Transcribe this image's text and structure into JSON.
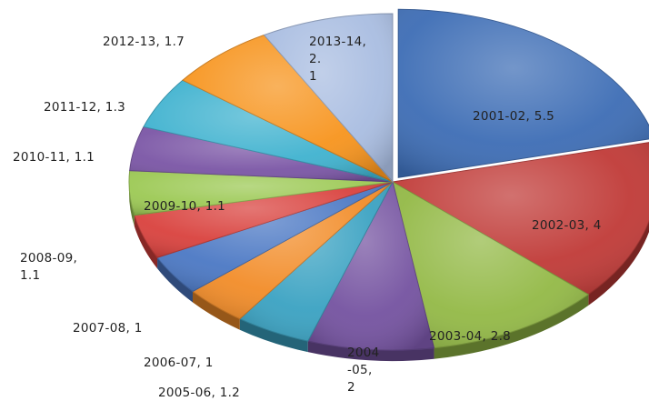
{
  "chart_data": {
    "type": "pie",
    "title": "",
    "style": "3d-exploded",
    "categories": [
      "2001-02",
      "2002-03",
      "2003-04",
      "2004-05",
      "2005-06",
      "2006-07",
      "2007-08",
      "2008-09",
      "2009-10",
      "2010-11",
      "2011-12",
      "2012-13",
      "2013-14"
    ],
    "values": [
      5.5,
      4,
      2.8,
      2,
      1.2,
      1,
      1,
      1.1,
      1.1,
      1.1,
      1.3,
      1.7,
      2.1
    ],
    "colors": [
      "#3d6db5",
      "#c03a37",
      "#93b946",
      "#7452a0",
      "#3aa2c2",
      "#f28c28",
      "#4b78c4",
      "#d9413d",
      "#9cc954",
      "#7a55a5",
      "#3fb2cf",
      "#f7941d",
      "#a9bde1"
    ],
    "labels": [
      {
        "text": "2001-02, 5.5"
      },
      {
        "text": "2002-03, 4"
      },
      {
        "text": "2003-04, 2.8"
      },
      {
        "text": "2004\n-05,\n2"
      },
      {
        "text": "2005-06, 1.2"
      },
      {
        "text": "2006-07, 1"
      },
      {
        "text": "2007-08, 1"
      },
      {
        "text": "2008-09,\n1.1"
      },
      {
        "text": "2009-10, 1.1"
      },
      {
        "text": "2010-11, 1.1"
      },
      {
        "text": "2011-12, 1.3"
      },
      {
        "text": "2012-13, 1.7"
      },
      {
        "text": "2013-14,\n2.\n1"
      }
    ],
    "legend": "none"
  }
}
